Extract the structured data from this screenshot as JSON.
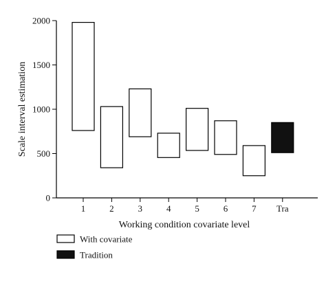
{
  "chart_data": {
    "type": "floating-bar",
    "title": "",
    "xlabel": "Working condition covariate level",
    "ylabel": "Scale interval estimation",
    "ylim": [
      0,
      2000
    ],
    "yticks": [
      0,
      500,
      1000,
      1500,
      2000
    ],
    "yticklabels": [
      "0",
      "500",
      "1000",
      "1500",
      "2000"
    ],
    "categories": [
      "1",
      "2",
      "3",
      "4",
      "5",
      "6",
      "7",
      "Tra"
    ],
    "series": [
      {
        "name": "With covariate",
        "color": "#ffffff",
        "stroke": "#000000",
        "categories": [
          "1",
          "2",
          "3",
          "4",
          "5",
          "6",
          "7"
        ],
        "low": [
          760,
          340,
          690,
          455,
          535,
          490,
          250
        ],
        "high": [
          1980,
          1030,
          1230,
          730,
          1010,
          870,
          590
        ]
      },
      {
        "name": "Tradition",
        "color": "#111111",
        "stroke": "#000000",
        "categories": [
          "Tra"
        ],
        "low": [
          510
        ],
        "high": [
          850
        ]
      }
    ],
    "grid": false,
    "legend_position": "bottom-left"
  }
}
